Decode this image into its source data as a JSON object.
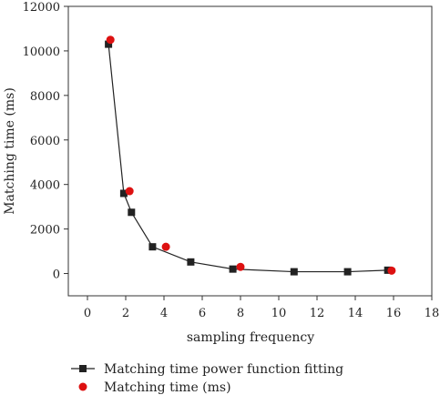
{
  "chart_data": {
    "type": "scatter",
    "xlabel": "sampling frequency",
    "ylabel": "Matching time (ms)",
    "xlim": [
      -1,
      18
    ],
    "ylim": [
      -1000,
      12000
    ],
    "x_ticks": [
      0,
      2,
      4,
      6,
      8,
      10,
      12,
      14,
      16,
      18
    ],
    "y_ticks": [
      0,
      2000,
      4000,
      6000,
      8000,
      10000,
      12000
    ],
    "x_tick_labels": [
      "0",
      "2",
      "4",
      "6",
      "8",
      "10",
      "12",
      "14",
      "16",
      "18"
    ],
    "y_tick_labels": [
      "0",
      "2000",
      "4000",
      "6000",
      "8000",
      "10000",
      "12000"
    ],
    "legend_position": "bottom",
    "series": [
      {
        "name": "Matching time power function fitting",
        "style": "line-square",
        "color": "#222222",
        "x": [
          1.1,
          1.9,
          2.3,
          3.4,
          5.4,
          7.6,
          10.8,
          13.6,
          15.7
        ],
        "y": [
          10300,
          3600,
          2750,
          1200,
          520,
          200,
          80,
          80,
          150
        ]
      },
      {
        "name": "Matching time (ms)",
        "style": "circle",
        "color": "#dd1111",
        "x": [
          1.2,
          2.2,
          4.1,
          8.0,
          15.9
        ],
        "y": [
          10500,
          3700,
          1200,
          300,
          130
        ]
      }
    ]
  }
}
